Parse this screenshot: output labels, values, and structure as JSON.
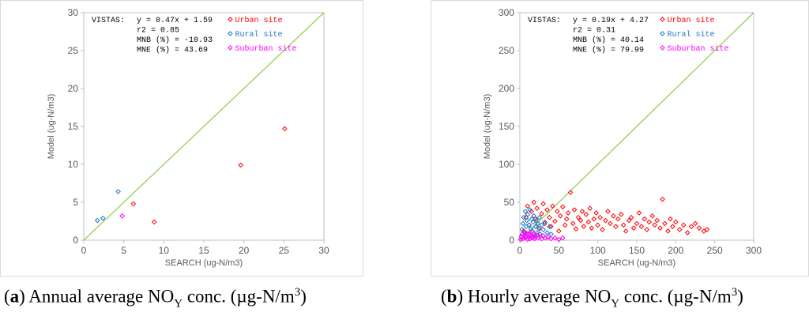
{
  "captions": [
    {
      "letter": "a",
      "prefix": ") Annual average NO",
      "sub": "Y",
      "mid": " conc. (µg-N/m",
      "sup": "3",
      "end": ")"
    },
    {
      "letter": "b",
      "prefix": ") Hourly average NO",
      "sub": "Y",
      "mid": " conc. (µg-N/m",
      "sup": "3",
      "end": ")"
    }
  ],
  "chart_data": [
    {
      "type": "scatter",
      "xlabel": "SEARCH (ug-N/m3)",
      "ylabel": "Model (ug-N/m3)",
      "xlim": [
        0,
        30
      ],
      "ylim": [
        0,
        30
      ],
      "xticks": [
        0,
        5,
        10,
        15,
        20,
        25,
        30
      ],
      "yticks": [
        0,
        5,
        10,
        15,
        20,
        25,
        30
      ],
      "grid": false,
      "reference_line": "1:1",
      "stats": {
        "label": "VISTAS:",
        "lines": [
          "y = 0.47x + 1.59",
          "r2 = 0.85",
          "MNB (%) = -10.93",
          "MNE (%) = 43.69"
        ]
      },
      "legend_position": "top-right",
      "series": [
        {
          "name": "Urban site",
          "color": "#ff0000",
          "points": [
            [
              6.2,
              4.8
            ],
            [
              8.8,
              2.4
            ],
            [
              19.6,
              9.9
            ],
            [
              25.1,
              14.7
            ]
          ]
        },
        {
          "name": "Rural site",
          "color": "#1f77c8",
          "points": [
            [
              1.7,
              2.6
            ],
            [
              2.4,
              2.9
            ],
            [
              4.3,
              6.4
            ]
          ]
        },
        {
          "name": "Suburban site",
          "color": "#ff00ff",
          "points": [
            [
              4.8,
              3.2
            ]
          ]
        }
      ]
    },
    {
      "type": "scatter",
      "xlabel": "SEARCH (ug-N/m3)",
      "ylabel": "Model (ug-N/m3)",
      "xlim": [
        0,
        300
      ],
      "ylim": [
        0,
        300
      ],
      "xticks": [
        0,
        50,
        100,
        150,
        200,
        250,
        300
      ],
      "yticks": [
        0,
        50,
        100,
        150,
        200,
        250,
        300
      ],
      "grid": false,
      "reference_line": "1:1",
      "stats": {
        "label": "VISTAS:",
        "lines": [
          "y = 0.19x + 4.27",
          "r2 = 0.31",
          "MNB (%) = 40.14",
          "MNE (%) = 79.99"
        ]
      },
      "legend_position": "top-right",
      "series": [
        {
          "name": "Urban site",
          "color": "#ff0000",
          "points": [
            [
              5,
              12
            ],
            [
              8,
              30
            ],
            [
              10,
              45
            ],
            [
              12,
              20
            ],
            [
              15,
              38
            ],
            [
              18,
              50
            ],
            [
              20,
              28
            ],
            [
              22,
              42
            ],
            [
              25,
              15
            ],
            [
              28,
              35
            ],
            [
              30,
              48
            ],
            [
              32,
              22
            ],
            [
              35,
              40
            ],
            [
              38,
              30
            ],
            [
              40,
              18
            ],
            [
              42,
              45
            ],
            [
              45,
              25
            ],
            [
              48,
              38
            ],
            [
              50,
              12
            ],
            [
              52,
              32
            ],
            [
              55,
              44
            ],
            [
              58,
              20
            ],
            [
              60,
              28
            ],
            [
              62,
              36
            ],
            [
              65,
              63
            ],
            [
              68,
              22
            ],
            [
              70,
              40
            ],
            [
              72,
              15
            ],
            [
              75,
              30
            ],
            [
              78,
              26
            ],
            [
              80,
              38
            ],
            [
              82,
              18
            ],
            [
              85,
              34
            ],
            [
              88,
              24
            ],
            [
              90,
              42
            ],
            [
              92,
              16
            ],
            [
              95,
              28
            ],
            [
              98,
              36
            ],
            [
              100,
              20
            ],
            [
              103,
              30
            ],
            [
              106,
              14
            ],
            [
              110,
              26
            ],
            [
              113,
              38
            ],
            [
              116,
              22
            ],
            [
              120,
              32
            ],
            [
              123,
              18
            ],
            [
              126,
              28
            ],
            [
              130,
              34
            ],
            [
              133,
              20
            ],
            [
              136,
              12
            ],
            [
              140,
              26
            ],
            [
              143,
              30
            ],
            [
              146,
              16
            ],
            [
              150,
              22
            ],
            [
              153,
              36
            ],
            [
              156,
              18
            ],
            [
              160,
              28
            ],
            [
              163,
              14
            ],
            [
              166,
              24
            ],
            [
              170,
              32
            ],
            [
              173,
              20
            ],
            [
              176,
              26
            ],
            [
              180,
              16
            ],
            [
              183,
              54
            ],
            [
              186,
              22
            ],
            [
              190,
              12
            ],
            [
              193,
              28
            ],
            [
              196,
              18
            ],
            [
              200,
              24
            ],
            [
              205,
              14
            ],
            [
              210,
              20
            ],
            [
              215,
              10
            ],
            [
              220,
              18
            ],
            [
              225,
              22
            ],
            [
              230,
              16
            ],
            [
              236,
              12
            ],
            [
              240,
              14
            ]
          ]
        },
        {
          "name": "Rural site",
          "color": "#1f77c8",
          "points": [
            [
              2,
              5
            ],
            [
              3,
              14
            ],
            [
              4,
              22
            ],
            [
              5,
              30
            ],
            [
              6,
              10
            ],
            [
              7,
              38
            ],
            [
              8,
              18
            ],
            [
              9,
              26
            ],
            [
              10,
              34
            ],
            [
              11,
              8
            ],
            [
              12,
              20
            ],
            [
              13,
              40
            ],
            [
              14,
              15
            ],
            [
              15,
              28
            ],
            [
              16,
              12
            ],
            [
              17,
              24
            ],
            [
              18,
              32
            ],
            [
              19,
              6
            ],
            [
              20,
              18
            ],
            [
              21,
              26
            ],
            [
              22,
              10
            ],
            [
              23,
              22
            ],
            [
              24,
              16
            ],
            [
              25,
              30
            ],
            [
              26,
              8
            ],
            [
              28,
              20
            ],
            [
              30,
              14
            ],
            [
              32,
              24
            ],
            [
              35,
              10
            ],
            [
              38,
              18
            ],
            [
              40,
              8
            ]
          ]
        },
        {
          "name": "Suburban site",
          "color": "#ff00ff",
          "points": [
            [
              1,
              1
            ],
            [
              2,
              4
            ],
            [
              3,
              8
            ],
            [
              4,
              2
            ],
            [
              5,
              6
            ],
            [
              6,
              10
            ],
            [
              7,
              3
            ],
            [
              8,
              5
            ],
            [
              9,
              9
            ],
            [
              10,
              1
            ],
            [
              11,
              4
            ],
            [
              12,
              7
            ],
            [
              13,
              2
            ],
            [
              14,
              6
            ],
            [
              15,
              11
            ],
            [
              16,
              3
            ],
            [
              17,
              5
            ],
            [
              18,
              8
            ],
            [
              19,
              2
            ],
            [
              20,
              4
            ],
            [
              22,
              7
            ],
            [
              24,
              3
            ],
            [
              26,
              5
            ],
            [
              28,
              2
            ],
            [
              30,
              6
            ],
            [
              33,
              3
            ],
            [
              36,
              4
            ],
            [
              40,
              2
            ],
            [
              45,
              3
            ],
            [
              50,
              1
            ],
            [
              55,
              3
            ]
          ]
        }
      ]
    }
  ]
}
